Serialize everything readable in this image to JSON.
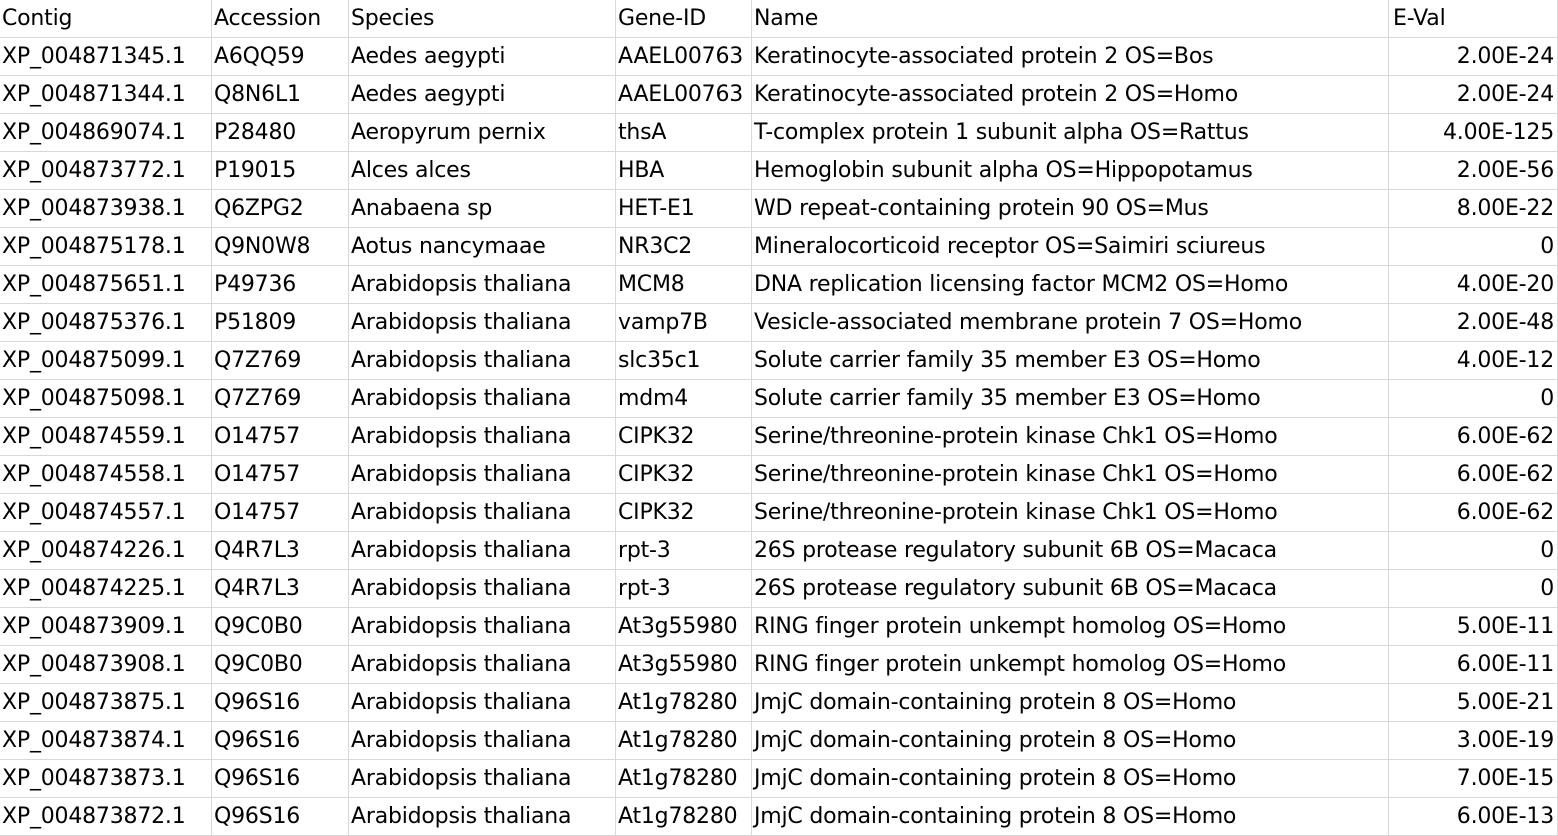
{
  "columns": [
    "Contig",
    "Accession",
    "Species",
    "Gene-ID",
    "Name",
    "E-Val"
  ],
  "rows": [
    [
      "XP_004871345.1",
      "A6QQ59",
      "Aedes aegypti",
      "AAEL00763",
      "Keratinocyte-associated protein 2 OS=Bos",
      "2.00E-24"
    ],
    [
      "XP_004871344.1",
      "Q8N6L1",
      "Aedes aegypti",
      "AAEL00763",
      "Keratinocyte-associated protein 2 OS=Homo",
      "2.00E-24"
    ],
    [
      "XP_004869074.1",
      "P28480",
      "Aeropyrum pernix",
      "thsA",
      "T-complex protein 1 subunit alpha OS=Rattus",
      "4.00E-125"
    ],
    [
      "XP_004873772.1",
      "P19015",
      "Alces alces",
      "HBA",
      "Hemoglobin subunit alpha OS=Hippopotamus",
      "2.00E-56"
    ],
    [
      "XP_004873938.1",
      "Q6ZPG2",
      "Anabaena sp",
      "HET-E1",
      "WD repeat-containing protein 90 OS=Mus",
      "8.00E-22"
    ],
    [
      "XP_004875178.1",
      "Q9N0W8",
      "Aotus nancymaae",
      "NR3C2",
      "Mineralocorticoid receptor OS=Saimiri sciureus",
      "0"
    ],
    [
      "XP_004875651.1",
      "P49736",
      "Arabidopsis thaliana",
      "MCM8",
      "DNA replication licensing factor MCM2 OS=Homo",
      "4.00E-20"
    ],
    [
      "XP_004875376.1",
      "P51809",
      "Arabidopsis thaliana",
      "vamp7B",
      "Vesicle-associated membrane protein 7 OS=Homo",
      "2.00E-48"
    ],
    [
      "XP_004875099.1",
      "Q7Z769",
      "Arabidopsis thaliana",
      "slc35c1",
      "Solute carrier family 35 member E3 OS=Homo",
      "4.00E-12"
    ],
    [
      "XP_004875098.1",
      "Q7Z769",
      "Arabidopsis thaliana",
      "mdm4",
      "Solute carrier family 35 member E3 OS=Homo",
      "0"
    ],
    [
      "XP_004874559.1",
      "O14757",
      "Arabidopsis thaliana",
      "CIPK32",
      "Serine/threonine-protein kinase Chk1 OS=Homo",
      "6.00E-62"
    ],
    [
      "XP_004874558.1",
      "O14757",
      "Arabidopsis thaliana",
      "CIPK32",
      "Serine/threonine-protein kinase Chk1 OS=Homo",
      "6.00E-62"
    ],
    [
      "XP_004874557.1",
      "O14757",
      "Arabidopsis thaliana",
      "CIPK32",
      "Serine/threonine-protein kinase Chk1 OS=Homo",
      "6.00E-62"
    ],
    [
      "XP_004874226.1",
      "Q4R7L3",
      "Arabidopsis thaliana",
      "rpt-3",
      "26S protease regulatory subunit 6B OS=Macaca",
      "0"
    ],
    [
      "XP_004874225.1",
      "Q4R7L3",
      "Arabidopsis thaliana",
      "rpt-3",
      "26S protease regulatory subunit 6B OS=Macaca",
      "0"
    ],
    [
      "XP_004873909.1",
      "Q9C0B0",
      "Arabidopsis thaliana",
      "At3g55980",
      "RING finger protein unkempt homolog OS=Homo",
      "5.00E-11"
    ],
    [
      "XP_004873908.1",
      "Q9C0B0",
      "Arabidopsis thaliana",
      "At3g55980",
      "RING finger protein unkempt homolog OS=Homo",
      "6.00E-11"
    ],
    [
      "XP_004873875.1",
      "Q96S16",
      "Arabidopsis thaliana",
      "At1g78280",
      "JmjC domain-containing protein 8 OS=Homo",
      "5.00E-21"
    ],
    [
      "XP_004873874.1",
      "Q96S16",
      "Arabidopsis thaliana",
      "At1g78280",
      "JmjC domain-containing protein 8 OS=Homo",
      "3.00E-19"
    ],
    [
      "XP_004873873.1",
      "Q96S16",
      "Arabidopsis thaliana",
      "At1g78280",
      "JmjC domain-containing protein 8 OS=Homo",
      "7.00E-15"
    ],
    [
      "XP_004873872.1",
      "Q96S16",
      "Arabidopsis thaliana",
      "At1g78280",
      "JmjC domain-containing protein 8 OS=Homo",
      "6.00E-13"
    ]
  ]
}
